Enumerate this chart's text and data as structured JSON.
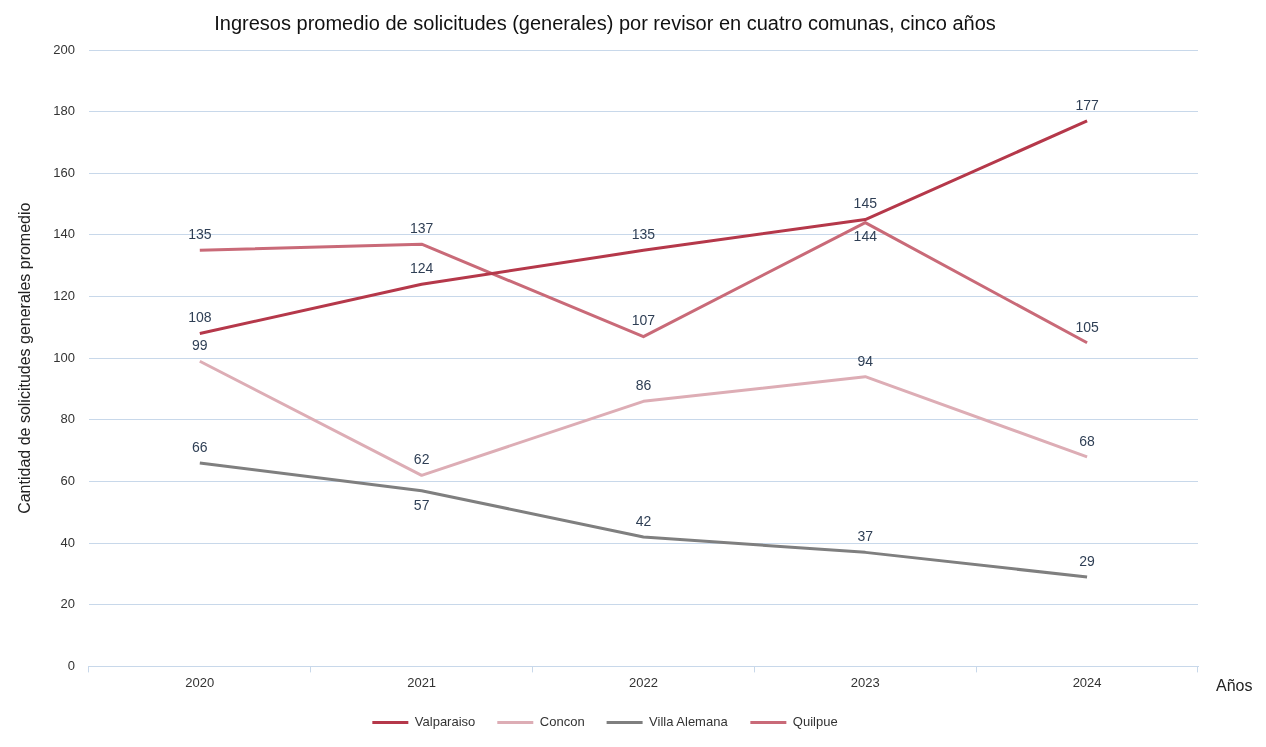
{
  "chart_data": {
    "type": "line",
    "title": "Ingresos promedio de solicitudes (generales) por revisor en cuatro comunas, cinco años",
    "xlabel": "Años",
    "ylabel": "Cantidad de solicitudes generales promedio",
    "categories": [
      "2020",
      "2021",
      "2022",
      "2023",
      "2024"
    ],
    "series": [
      {
        "name": "Valparaiso",
        "color": "#b5384a",
        "values": [
          108,
          124,
          135,
          145,
          177
        ]
      },
      {
        "name": "Concon",
        "color": "#ddadb5",
        "values": [
          99,
          62,
          86,
          94,
          68
        ]
      },
      {
        "name": "Villa Alemana",
        "color": "#7f7f7f",
        "values": [
          66,
          57,
          42,
          37,
          29
        ]
      },
      {
        "name": "Quilpue",
        "color": "#c96a78",
        "values": [
          135,
          137,
          107,
          144,
          105
        ]
      }
    ],
    "ylim": [
      0,
      200
    ],
    "yticks": [
      0,
      20,
      40,
      60,
      80,
      100,
      120,
      140,
      160,
      180,
      200
    ],
    "grid": "y",
    "legend": "bottom",
    "marker": "none",
    "line_style": "solid",
    "data_labels": true
  }
}
